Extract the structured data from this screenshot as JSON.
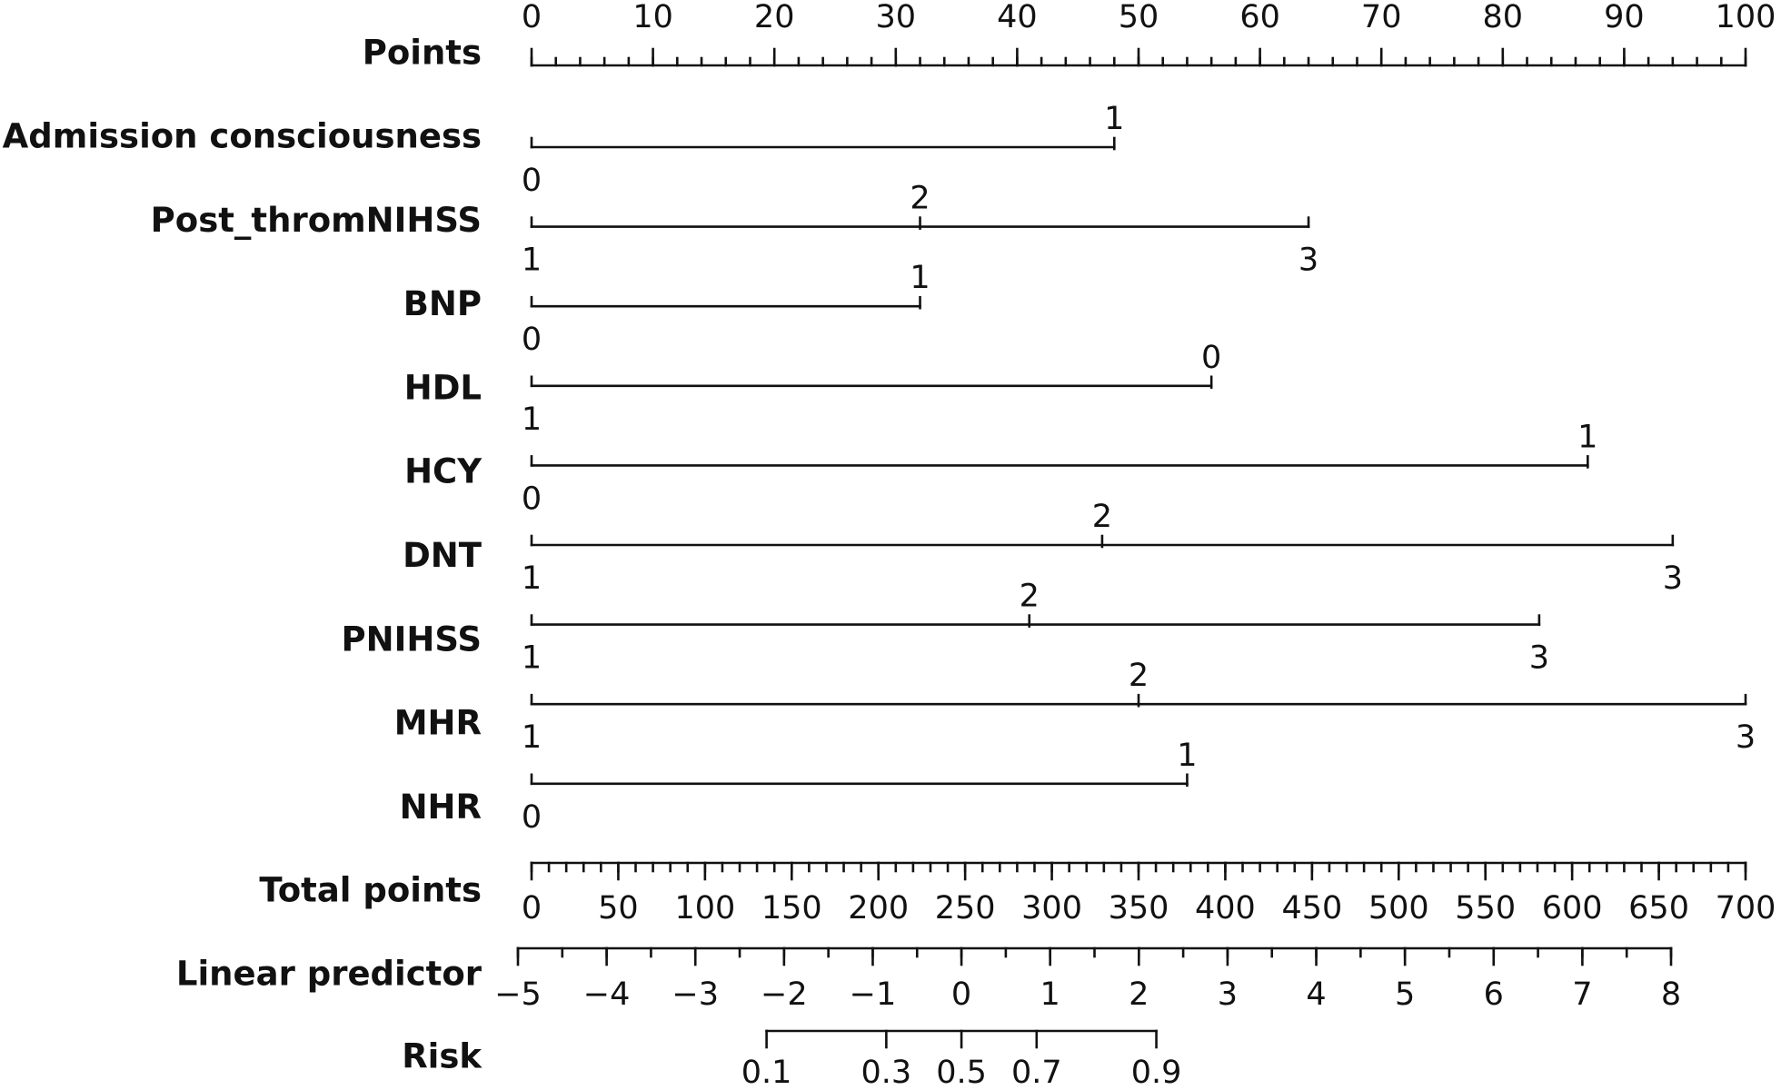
{
  "chart_data": {
    "type": "nomogram",
    "points": {
      "label": "Points",
      "xlim": [
        0,
        100
      ],
      "xticks": [
        0,
        10,
        20,
        30,
        40,
        50,
        60,
        70,
        80,
        90,
        100
      ],
      "minor_ticks": [
        0,
        2,
        4,
        6,
        8,
        10,
        12,
        14,
        16,
        18,
        20,
        22,
        24,
        26,
        28,
        30,
        32,
        34,
        36,
        38,
        40,
        42,
        44,
        46,
        48,
        50,
        52,
        54,
        56,
        58,
        60,
        62,
        64,
        66,
        68,
        70,
        72,
        74,
        76,
        78,
        80,
        82,
        84,
        86,
        88,
        90,
        92,
        94,
        96,
        98,
        100
      ]
    },
    "variables": [
      {
        "name": "Admission consciousness",
        "levels": [
          "0",
          "1"
        ],
        "points": [
          0,
          48
        ]
      },
      {
        "name": "Post_thromNIHSS",
        "levels": [
          "1",
          "2",
          "3"
        ],
        "points": [
          0,
          32,
          64
        ]
      },
      {
        "name": "BNP",
        "levels": [
          "0",
          "1"
        ],
        "points": [
          0,
          32
        ]
      },
      {
        "name": "HDL",
        "levels": [
          "1",
          "0"
        ],
        "points": [
          0,
          56
        ]
      },
      {
        "name": "HCY",
        "levels": [
          "0",
          "1"
        ],
        "points": [
          0,
          87
        ]
      },
      {
        "name": "DNT",
        "levels": [
          "1",
          "2",
          "3"
        ],
        "points": [
          0,
          47,
          94
        ]
      },
      {
        "name": "PNIHSS",
        "levels": [
          "1",
          "2",
          "3"
        ],
        "points": [
          0,
          41,
          83
        ]
      },
      {
        "name": "MHR",
        "levels": [
          "1",
          "2",
          "3"
        ],
        "points": [
          0,
          50,
          100
        ]
      },
      {
        "name": "NHR",
        "levels": [
          "0",
          "1"
        ],
        "points": [
          0,
          54
        ]
      }
    ],
    "total_points": {
      "label": "Total points",
      "xlim": [
        0,
        700
      ],
      "xticks": [
        0,
        50,
        100,
        150,
        200,
        250,
        300,
        350,
        400,
        450,
        500,
        550,
        600,
        650,
        700
      ],
      "minor_ticks": [
        0,
        10,
        20,
        30,
        40,
        50,
        60,
        70,
        80,
        90,
        100,
        110,
        120,
        130,
        140,
        150,
        160,
        170,
        180,
        190,
        200,
        210,
        220,
        230,
        240,
        250,
        260,
        270,
        280,
        290,
        300,
        310,
        320,
        330,
        340,
        350,
        360,
        370,
        380,
        390,
        400,
        410,
        420,
        430,
        440,
        450,
        460,
        470,
        480,
        490,
        500,
        510,
        520,
        530,
        540,
        550,
        560,
        570,
        580,
        590,
        600,
        610,
        620,
        630,
        640,
        650,
        660,
        670,
        680,
        690,
        700
      ]
    },
    "linear_predictor": {
      "label": "Linear predictor",
      "xlim": [
        -5,
        8
      ],
      "xticks": [
        {
          "value": -5,
          "label": "−5"
        },
        {
          "value": -4,
          "label": "−4"
        },
        {
          "value": -3,
          "label": "−3"
        },
        {
          "value": -2,
          "label": "−2"
        },
        {
          "value": -1,
          "label": "−1"
        },
        0,
        1,
        2,
        3,
        4,
        5,
        6,
        7,
        8
      ],
      "minor_ticks": [
        -5,
        -4.5,
        -4,
        -3.5,
        -3,
        -2.5,
        -2,
        -1.5,
        -1,
        -0.5,
        0,
        0.5,
        1,
        1.5,
        2,
        2.5,
        3,
        3.5,
        4,
        4.5,
        5,
        5.5,
        6,
        6.5,
        7,
        7.5,
        8
      ]
    },
    "risk": {
      "label": "Risk",
      "scale": "logit",
      "ticks": [
        0.1,
        0.3,
        0.5,
        0.7,
        0.9
      ]
    }
  }
}
